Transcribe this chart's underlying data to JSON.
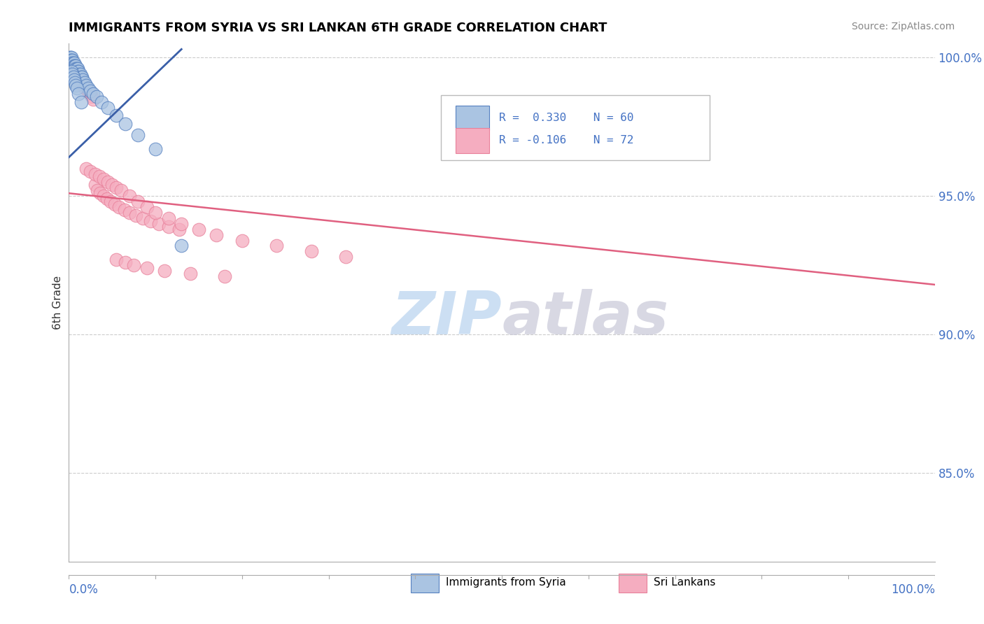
{
  "title": "IMMIGRANTS FROM SYRIA VS SRI LANKAN 6TH GRADE CORRELATION CHART",
  "source": "Source: ZipAtlas.com",
  "ylabel": "6th Grade",
  "xlim": [
    0.0,
    1.0
  ],
  "ylim": [
    0.818,
    1.005
  ],
  "yticks": [
    0.85,
    0.9,
    0.95,
    1.0
  ],
  "ytick_labels": [
    "85.0%",
    "90.0%",
    "95.0%",
    "100.0%"
  ],
  "legend_r_syria": "R =  0.330",
  "legend_n_syria": "N = 60",
  "legend_r_srilanka": "R = -0.106",
  "legend_n_srilanka": "N = 72",
  "syria_color": "#aac4e2",
  "srilanka_color": "#f5adc0",
  "syria_edge_color": "#5580c0",
  "srilanka_edge_color": "#e8809a",
  "syria_line_color": "#3a5fa8",
  "srilanka_line_color": "#e06080",
  "watermark_zip_color": "#c0d8f0",
  "watermark_atlas_color": "#c8c8d8",
  "grid_color": "#cccccc",
  "background_color": "#ffffff",
  "syria_line_x": [
    0.0,
    0.13
  ],
  "syria_line_y": [
    0.964,
    1.003
  ],
  "srilanka_line_x": [
    0.0,
    1.0
  ],
  "srilanka_line_y": [
    0.951,
    0.918
  ],
  "syria_x": [
    0.001,
    0.001,
    0.001,
    0.001,
    0.002,
    0.002,
    0.002,
    0.002,
    0.002,
    0.003,
    0.003,
    0.003,
    0.003,
    0.003,
    0.003,
    0.004,
    0.004,
    0.004,
    0.004,
    0.005,
    0.005,
    0.005,
    0.006,
    0.006,
    0.006,
    0.007,
    0.007,
    0.008,
    0.008,
    0.009,
    0.01,
    0.01,
    0.011,
    0.012,
    0.013,
    0.014,
    0.015,
    0.016,
    0.018,
    0.02,
    0.022,
    0.025,
    0.028,
    0.032,
    0.038,
    0.045,
    0.055,
    0.065,
    0.08,
    0.1,
    0.003,
    0.004,
    0.005,
    0.006,
    0.007,
    0.008,
    0.009,
    0.011,
    0.014,
    0.13
  ],
  "syria_y": [
    1.0,
    0.999,
    0.999,
    0.998,
    1.0,
    0.999,
    0.999,
    0.998,
    0.997,
    1.0,
    0.999,
    0.998,
    0.998,
    0.997,
    0.996,
    0.999,
    0.998,
    0.997,
    0.996,
    0.998,
    0.997,
    0.996,
    0.998,
    0.997,
    0.996,
    0.997,
    0.996,
    0.997,
    0.996,
    0.996,
    0.996,
    0.995,
    0.995,
    0.994,
    0.994,
    0.993,
    0.993,
    0.992,
    0.991,
    0.99,
    0.989,
    0.988,
    0.987,
    0.986,
    0.984,
    0.982,
    0.979,
    0.976,
    0.972,
    0.967,
    0.995,
    0.994,
    0.993,
    0.992,
    0.991,
    0.99,
    0.989,
    0.987,
    0.984,
    0.932
  ],
  "srilanka_x": [
    0.002,
    0.003,
    0.003,
    0.004,
    0.004,
    0.005,
    0.005,
    0.006,
    0.006,
    0.007,
    0.007,
    0.008,
    0.008,
    0.009,
    0.01,
    0.011,
    0.012,
    0.013,
    0.014,
    0.015,
    0.016,
    0.017,
    0.018,
    0.02,
    0.022,
    0.024,
    0.026,
    0.028,
    0.03,
    0.033,
    0.036,
    0.04,
    0.044,
    0.048,
    0.053,
    0.058,
    0.064,
    0.07,
    0.077,
    0.085,
    0.094,
    0.104,
    0.115,
    0.127,
    0.02,
    0.025,
    0.03,
    0.035,
    0.04,
    0.045,
    0.05,
    0.055,
    0.06,
    0.07,
    0.08,
    0.09,
    0.1,
    0.115,
    0.13,
    0.15,
    0.17,
    0.2,
    0.24,
    0.28,
    0.32,
    0.055,
    0.065,
    0.075,
    0.09,
    0.11,
    0.14,
    0.18
  ],
  "srilanka_y": [
    0.998,
    0.997,
    0.996,
    0.997,
    0.996,
    0.997,
    0.996,
    0.997,
    0.996,
    0.996,
    0.995,
    0.996,
    0.995,
    0.995,
    0.994,
    0.994,
    0.993,
    0.993,
    0.992,
    0.991,
    0.991,
    0.99,
    0.989,
    0.989,
    0.988,
    0.987,
    0.986,
    0.985,
    0.954,
    0.952,
    0.951,
    0.95,
    0.949,
    0.948,
    0.947,
    0.946,
    0.945,
    0.944,
    0.943,
    0.942,
    0.941,
    0.94,
    0.939,
    0.938,
    0.96,
    0.959,
    0.958,
    0.957,
    0.956,
    0.955,
    0.954,
    0.953,
    0.952,
    0.95,
    0.948,
    0.946,
    0.944,
    0.942,
    0.94,
    0.938,
    0.936,
    0.934,
    0.932,
    0.93,
    0.928,
    0.927,
    0.926,
    0.925,
    0.924,
    0.923,
    0.922,
    0.921
  ]
}
